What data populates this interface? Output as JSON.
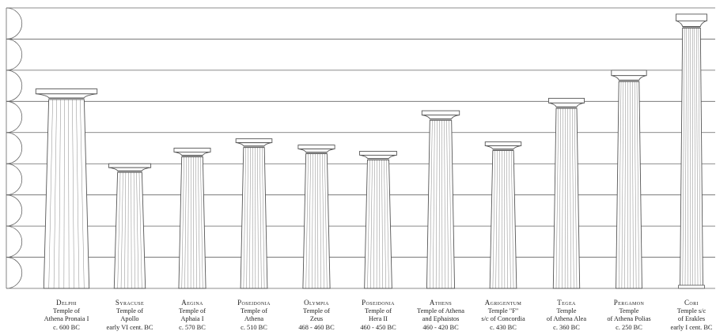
{
  "columns": [
    {
      "site": "Delphi",
      "lines": [
        "Temple of",
        "Athena Pronaia I",
        "c. 600 BC"
      ],
      "height_units": 6.4,
      "slenderness": 4.4
    },
    {
      "site": "Syracuse",
      "lines": [
        "Temple of",
        "Apollo",
        "early VI cent. BC"
      ],
      "height_units": 4.0,
      "slenderness": 4.0
    },
    {
      "site": "Aegina",
      "lines": [
        "Temple of",
        "Aphaia I",
        "c. 570 BC"
      ],
      "height_units": 4.5,
      "slenderness": 5.2
    },
    {
      "site": "Poseidonia",
      "lines": [
        "Temple of",
        "Athena",
        "c. 510 BC"
      ],
      "height_units": 4.8,
      "slenderness": 5.6
    },
    {
      "site": "Olympia",
      "lines": [
        "Temple of",
        "Zeus",
        "468 - 460 BC"
      ],
      "height_units": 4.6,
      "slenderness": 5.3
    },
    {
      "site": "Poseidonia",
      "lines": [
        "Temple of",
        "Hera II",
        "460 - 450 BC"
      ],
      "height_units": 4.4,
      "slenderness": 5.0
    },
    {
      "site": "Athens",
      "lines": [
        "Temple of Athena",
        "and Ephaistos",
        "460 - 420 BC"
      ],
      "height_units": 5.7,
      "slenderness": 6.4
    },
    {
      "site": "Agrigentum",
      "lines": [
        "Temple \"F\"",
        "s/c of Concordia",
        "c. 430 BC"
      ],
      "height_units": 4.7,
      "slenderness": 5.5
    },
    {
      "site": "Tegea",
      "lines": [
        "Temple",
        "of Athena Alea",
        "c. 360 BC"
      ],
      "height_units": 6.1,
      "slenderness": 7.2
    },
    {
      "site": "Pergamon",
      "lines": [
        "Temple",
        "of Athena Polias",
        "c. 250 BC"
      ],
      "height_units": 7.0,
      "slenderness": 8.4
    },
    {
      "site": "Cori",
      "lines": [
        "Temple s/c",
        "of Erakles",
        "early I cent. BC"
      ],
      "height_units": 8.8,
      "slenderness": 12.0
    }
  ],
  "grid_levels": 9,
  "colors": {
    "line": "#555555",
    "grid": "#666666",
    "fill": "#ffffff"
  }
}
